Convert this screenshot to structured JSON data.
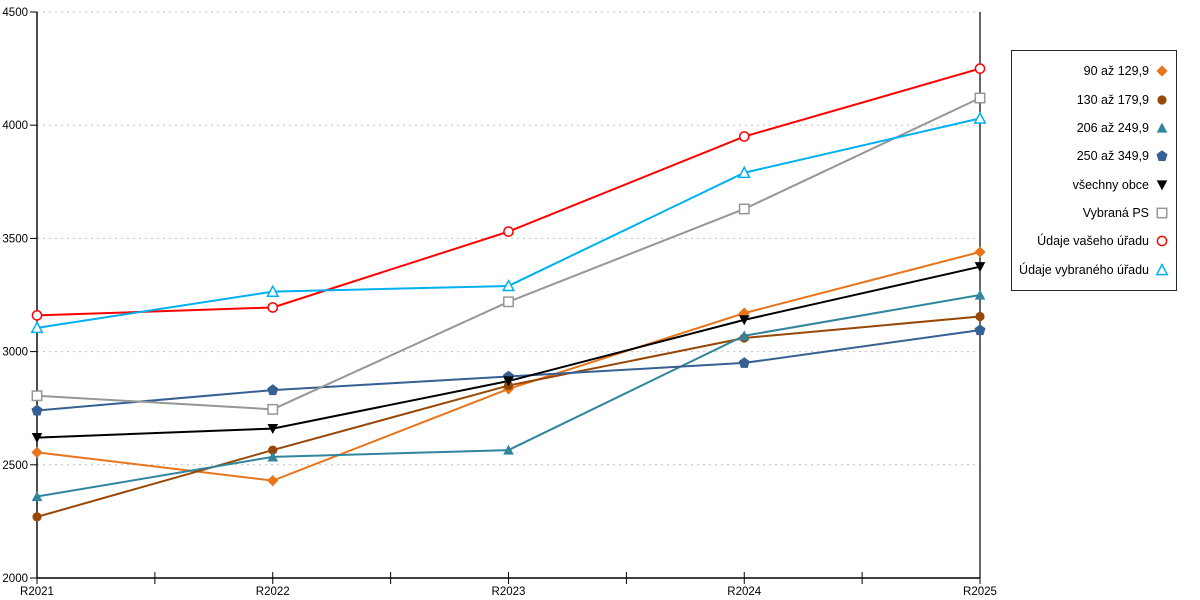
{
  "chart_data": {
    "type": "line",
    "title": "",
    "xlabel": "",
    "ylabel": "",
    "categories": [
      "R2021",
      "R2022",
      "R2023",
      "R2024",
      "R2025"
    ],
    "ylim": [
      2000,
      4500
    ],
    "ytick_step": 500,
    "ytick_labels": [
      "2000",
      "2500",
      "3000",
      "3500",
      "4000",
      "4500"
    ],
    "grid": "horizontal-dotted",
    "gridline_color": "#bfbfbf",
    "axis_color": "#000000",
    "legend_position": "right",
    "series": [
      {
        "name": "90 až 129,9",
        "marker": "diamond",
        "color": "#E8741B",
        "values": [
          2555,
          2430,
          2835,
          3170,
          3440
        ]
      },
      {
        "name": "130 až 179,9",
        "marker": "circle",
        "color": "#974706",
        "values": [
          2270,
          2565,
          2850,
          3060,
          3155
        ]
      },
      {
        "name": "206 až 249,9",
        "marker": "triangle-up",
        "color": "#31859C",
        "values": [
          2360,
          2535,
          2565,
          3070,
          3250
        ]
      },
      {
        "name": "250 až 349,9",
        "marker": "pentagon",
        "color": "#376092",
        "values": [
          2740,
          2830,
          2890,
          2950,
          3095
        ]
      },
      {
        "name": "všechny obce",
        "marker": "triangle-down",
        "color": "#000000",
        "values": [
          2620,
          2660,
          2870,
          3140,
          3375
        ]
      },
      {
        "name": "Vybraná PS",
        "marker": "square-open",
        "color": "#969696",
        "values": [
          2805,
          2745,
          3220,
          3630,
          4120
        ]
      },
      {
        "name": "Údaje vašeho úřadu",
        "marker": "circle-open",
        "color": "#FF0000",
        "values": [
          3160,
          3195,
          3530,
          3950,
          4250
        ]
      },
      {
        "name": "Údaje vybraného úřadu",
        "marker": "triangle-open",
        "color": "#00B0F0",
        "values": [
          3105,
          3265,
          3290,
          3790,
          4030
        ]
      }
    ]
  }
}
